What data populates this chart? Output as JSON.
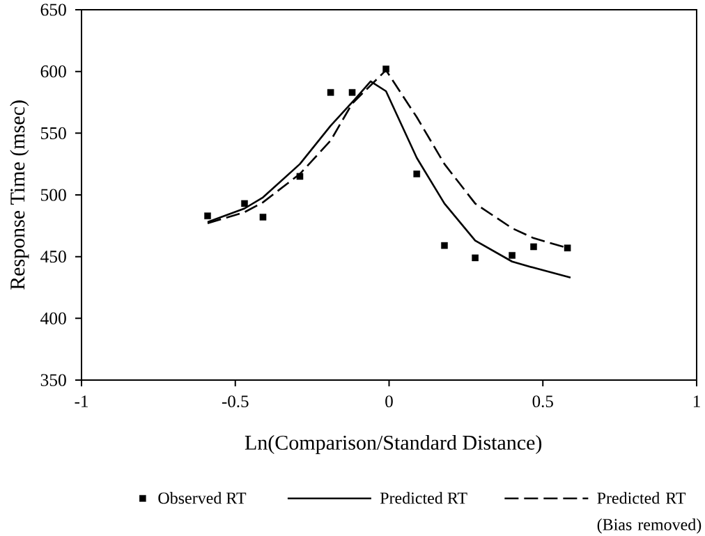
{
  "chart_data": {
    "type": "scatter",
    "xlabel": "Ln(Comparison/Standard Distance)",
    "ylabel": "Response Time (msec)",
    "xlim": [
      -1,
      1
    ],
    "ylim": [
      350,
      650
    ],
    "xticks": [
      -1,
      -0.5,
      0,
      0.5,
      1
    ],
    "yticks": [
      350,
      400,
      450,
      500,
      550,
      600,
      650
    ],
    "legend": "bottom",
    "series": [
      {
        "name": "Observed RT",
        "marker": "square",
        "color": "#000000",
        "x": [
          -0.59,
          -0.47,
          -0.41,
          -0.29,
          -0.19,
          -0.12,
          -0.01,
          0.09,
          0.18,
          0.28,
          0.4,
          0.47,
          0.58
        ],
        "values": [
          483,
          493,
          482,
          515,
          583,
          583,
          602,
          517,
          459,
          449,
          451,
          458,
          457
        ]
      },
      {
        "name": "Predicted RT",
        "type": "line",
        "line_style": "solid",
        "color": "#000000",
        "x": [
          -0.59,
          -0.47,
          -0.41,
          -0.29,
          -0.19,
          -0.12,
          -0.06,
          -0.01,
          0.09,
          0.18,
          0.28,
          0.4,
          0.47,
          0.59
        ],
        "values": [
          478,
          489,
          498,
          525,
          556,
          575,
          592,
          584,
          530,
          493,
          463,
          446,
          441,
          433
        ]
      },
      {
        "name": "Predicted RT (Bias removed)",
        "type": "line",
        "line_style": "dashed",
        "color": "#000000",
        "x": [
          -0.59,
          -0.47,
          -0.41,
          -0.29,
          -0.19,
          -0.12,
          -0.01,
          0.09,
          0.18,
          0.28,
          0.4,
          0.47,
          0.58
        ],
        "values": [
          477,
          486,
          494,
          517,
          544,
          574,
          601,
          563,
          525,
          493,
          473,
          465,
          457
        ]
      }
    ]
  }
}
